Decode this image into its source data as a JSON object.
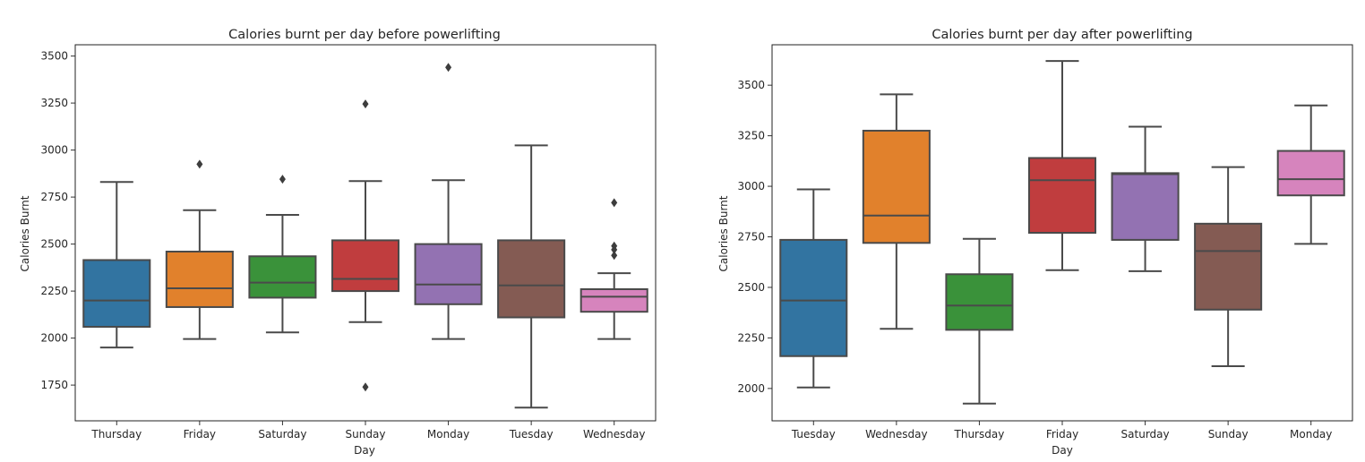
{
  "chart_data": [
    {
      "type": "box",
      "title": "Calories burnt per day before powerlifting",
      "xlabel": "Day",
      "ylabel": "Calories Burnt",
      "ylim": [
        1560,
        3560
      ],
      "yticks": [
        1750,
        2000,
        2250,
        2500,
        2750,
        3000,
        3250,
        3500
      ],
      "categories": [
        "Thursday",
        "Friday",
        "Saturday",
        "Sunday",
        "Monday",
        "Tuesday",
        "Wednesday"
      ],
      "colors": [
        "#3274a1",
        "#e1812c",
        "#3a923a",
        "#c03d3e",
        "#9372b2",
        "#845b53",
        "#d684bd"
      ],
      "boxes": [
        {
          "whislo": 1950,
          "q1": 2060,
          "med": 2200,
          "q3": 2415,
          "whishi": 2830,
          "fliers": []
        },
        {
          "whislo": 1995,
          "q1": 2165,
          "med": 2265,
          "q3": 2460,
          "whishi": 2680,
          "fliers": [
            2925
          ]
        },
        {
          "whislo": 2030,
          "q1": 2215,
          "med": 2295,
          "q3": 2435,
          "whishi": 2655,
          "fliers": [
            2845
          ]
        },
        {
          "whislo": 2085,
          "q1": 2250,
          "med": 2315,
          "q3": 2520,
          "whishi": 2835,
          "fliers": [
            3245,
            1740
          ]
        },
        {
          "whislo": 1995,
          "q1": 2180,
          "med": 2285,
          "q3": 2500,
          "whishi": 2840,
          "fliers": [
            3440
          ]
        },
        {
          "whislo": 1630,
          "q1": 2110,
          "med": 2280,
          "q3": 2520,
          "whishi": 3025,
          "fliers": []
        },
        {
          "whislo": 1995,
          "q1": 2140,
          "med": 2220,
          "q3": 2260,
          "whishi": 2345,
          "fliers": [
            2720,
            2490,
            2470,
            2440
          ]
        }
      ]
    },
    {
      "type": "box",
      "title": "Calories burnt per day after powerlifting",
      "xlabel": "Day",
      "ylabel": "Calories Burnt",
      "ylim": [
        1840,
        3700
      ],
      "yticks": [
        2000,
        2250,
        2500,
        2750,
        3000,
        3250,
        3500
      ],
      "categories": [
        "Tuesday",
        "Wednesday",
        "Thursday",
        "Friday",
        "Saturday",
        "Sunday",
        "Monday"
      ],
      "colors": [
        "#3274a1",
        "#e1812c",
        "#3a923a",
        "#c03d3e",
        "#9372b2",
        "#845b53",
        "#d684bd"
      ],
      "boxes": [
        {
          "whislo": 2005,
          "q1": 2160,
          "med": 2435,
          "q3": 2735,
          "whishi": 2985,
          "fliers": []
        },
        {
          "whislo": 2295,
          "q1": 2720,
          "med": 2855,
          "q3": 3275,
          "whishi": 3455,
          "fliers": []
        },
        {
          "whislo": 1925,
          "q1": 2290,
          "med": 2410,
          "q3": 2565,
          "whishi": 2740,
          "fliers": []
        },
        {
          "whislo": 2585,
          "q1": 2770,
          "med": 3030,
          "q3": 3140,
          "whishi": 3620,
          "fliers": []
        },
        {
          "whislo": 2580,
          "q1": 2735,
          "med": 3060,
          "q3": 3065,
          "whishi": 3295,
          "fliers": []
        },
        {
          "whislo": 2110,
          "q1": 2390,
          "med": 2680,
          "q3": 2815,
          "whishi": 3095,
          "fliers": []
        },
        {
          "whislo": 2715,
          "q1": 2955,
          "med": 3035,
          "q3": 3175,
          "whishi": 3400,
          "fliers": []
        }
      ]
    }
  ]
}
